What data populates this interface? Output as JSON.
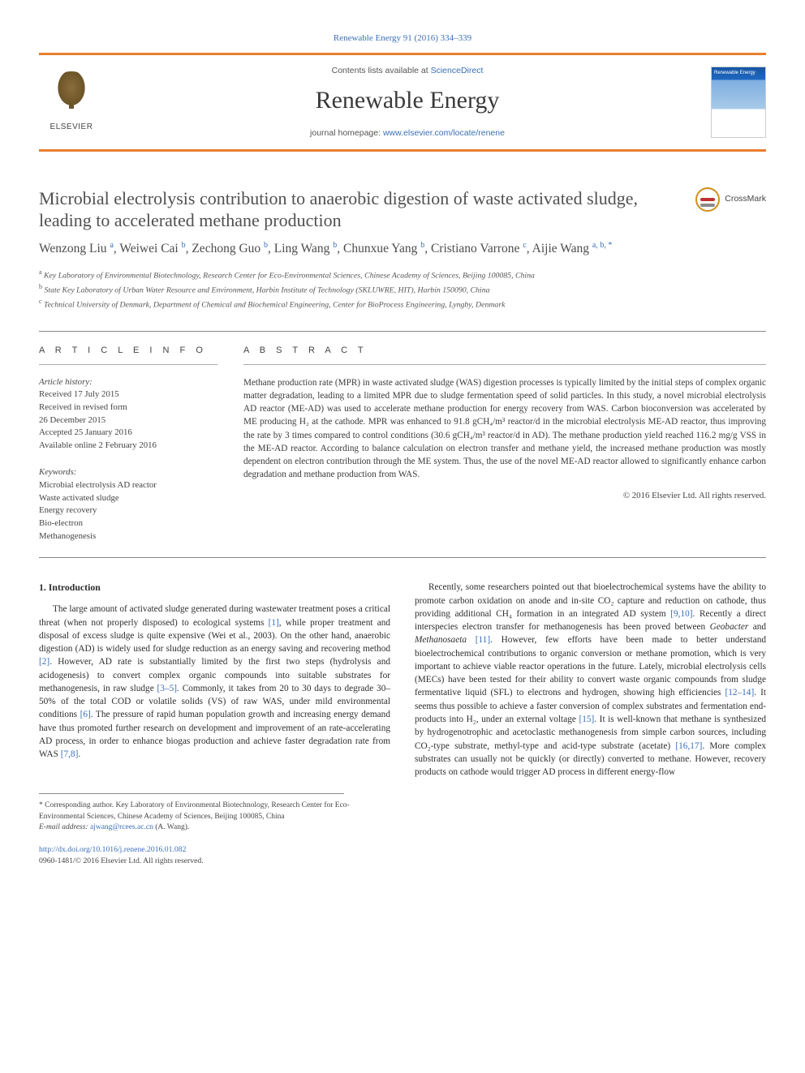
{
  "journal_ref": {
    "prefix": "",
    "text": "Renewable Energy 91 (2016) 334–339",
    "link_color": "#3b6fb6"
  },
  "header": {
    "contents_prefix": "Contents lists available at ",
    "contents_link": "ScienceDirect",
    "journal_title": "Renewable Energy",
    "homepage_prefix": "journal homepage: ",
    "homepage_link": "www.elsevier.com/locate/renene",
    "publisher_name": "ELSEVIER",
    "cover_label": "Renewable Energy"
  },
  "crossmark": "CrossMark",
  "title": "Microbial electrolysis contribution to anaerobic digestion of waste activated sludge, leading to accelerated methane production",
  "authors_html": "Wenzong Liu <sup>a</sup>, Weiwei Cai <sup>b</sup>, Zechong Guo <sup>b</sup>, Ling Wang <sup>b</sup>, Chunxue Yang <sup>b</sup>, Cristiano Varrone <sup>c</sup>, Aijie Wang <sup>a, b, *</sup>",
  "affiliations": {
    "a": "Key Laboratory of Environmental Biotechnology, Research Center for Eco-Environmental Sciences, Chinese Academy of Sciences, Beijing 100085, China",
    "b": "State Key Laboratory of Urban Water Resource and Environment, Harbin Institute of Technology (SKLUWRE, HIT), Harbin 150090, China",
    "c": "Technical University of Denmark, Department of Chemical and Biochemical Engineering, Center for BioProcess Engineering, Lyngby, Denmark"
  },
  "article_info": {
    "heading": "A R T I C L E   I N F O",
    "history_label": "Article history:",
    "history": [
      "Received 17 July 2015",
      "Received in revised form",
      "26 December 2015",
      "Accepted 25 January 2016",
      "Available online 2 February 2016"
    ],
    "keywords_label": "Keywords:",
    "keywords": [
      "Microbial electrolysis AD reactor",
      "Waste activated sludge",
      "Energy recovery",
      "Bio-electron",
      "Methanogenesis"
    ]
  },
  "abstract": {
    "heading": "A B S T R A C T",
    "text": "Methane production rate (MPR) in waste activated sludge (WAS) digestion processes is typically limited by the initial steps of complex organic matter degradation, leading to a limited MPR due to sludge fermentation speed of solid particles. In this study, a novel microbial electrolysis AD reactor (ME-AD) was used to accelerate methane production for energy recovery from WAS. Carbon bioconversion was accelerated by ME producing H₂ at the cathode. MPR was enhanced to 91.8 gCH₄/m³ reactor/d in the microbial electrolysis ME-AD reactor, thus improving the rate by 3 times compared to control conditions (30.6 gCH₄/m³ reactor/d in AD). The methane production yield reached 116.2 mg/g VSS in the ME-AD reactor. According to balance calculation on electron transfer and methane yield, the increased methane production was mostly dependent on electron contribution through the ME system. Thus, the use of the novel ME-AD reactor allowed to significantly enhance carbon degradation and methane production from WAS.",
    "copyright": "© 2016 Elsevier Ltd. All rights reserved."
  },
  "section1": {
    "heading": "1. Introduction",
    "p1a": "The large amount of activated sludge generated during wastewater treatment poses a critical threat (when not properly disposed) to ecological systems ",
    "r1": "[1]",
    "p1b": ", while proper treatment and disposal of excess sludge is quite expensive (Wei et al., 2003). On the other hand, anaerobic digestion (AD) is widely used for sludge reduction as an energy saving and recovering method ",
    "r2": "[2]",
    "p1c": ". However, AD rate is substantially limited by the first two steps (hydrolysis and acidogenesis) to convert complex organic compounds into suitable substrates for methanogenesis, in raw sludge ",
    "r3": "[3–5]",
    "p1d": ". Commonly, it takes from 20 to 30 days to degrade 30–50% of the total COD or volatile solids (VS) of raw WAS, under mild environmental conditions ",
    "r6": "[6]",
    "p1e": ". The pressure of rapid human population growth and increasing energy demand have thus promoted further research on development and improvement of an rate-accelerating AD process, in order to enhance biogas production and achieve faster degradation rate from WAS ",
    "r7": "[7,8]",
    "p1f": ".",
    "p2a": "Recently, some researchers pointed out that bioelectrochemical systems have the ability to promote carbon oxidation on anode and in-site CO₂ capture and reduction on cathode, thus providing additional CH₄ formation in an integrated AD system ",
    "r9": "[9,10]",
    "p2b": ". Recently a direct interspecies electron transfer for methanogenesis has been proved between ",
    "geo": "Geobacter",
    "p2b2": " and ",
    "meth": "Methanosaeta",
    "p2b3": " ",
    "r11": "[11]",
    "p2c": ". However, few efforts have been made to better understand bioelectrochemical contributions to organic conversion or methane promotion, which is very important to achieve viable reactor operations in the future. Lately, microbial electrolysis cells (MECs) have been tested for their ability to convert waste organic compounds from sludge fermentative liquid (SFL) to electrons and hydrogen, showing high efficiencies ",
    "r12": "[12–14]",
    "p2d": ". It seems thus possible to achieve a faster conversion of complex substrates and fermentation end-products into H₂, under an external voltage ",
    "r15": "[15]",
    "p2e": ". It is well-known that methane is synthesized by hydrogenotrophic and acetoclastic methanogenesis from simple carbon sources, including CO₂-type substrate, methyl-type and acid-type substrate (acetate) ",
    "r16": "[16,17]",
    "p2f": ". More complex substrates can usually not be quickly (or directly) converted to methane. However, recovery products on cathode would trigger AD process in different energy-flow"
  },
  "footnote": {
    "corr_label": "* Corresponding author. Key Laboratory of Environmental Biotechnology, Research Center for Eco-Environmental Sciences, Chinese Academy of Sciences, Beijing 100085, China",
    "email_label": "E-mail address: ",
    "email": "ajwang@rcees.ac.cn",
    "email_suffix": " (A. Wang)."
  },
  "doi": {
    "url": "http://dx.doi.org/10.1016/j.renene.2016.01.082",
    "issn_line": "0960-1481/© 2016 Elsevier Ltd. All rights reserved."
  },
  "colors": {
    "accent_orange": "#e97e2e",
    "link_blue": "#3b6fb6",
    "text_gray": "#3a3a3a"
  }
}
